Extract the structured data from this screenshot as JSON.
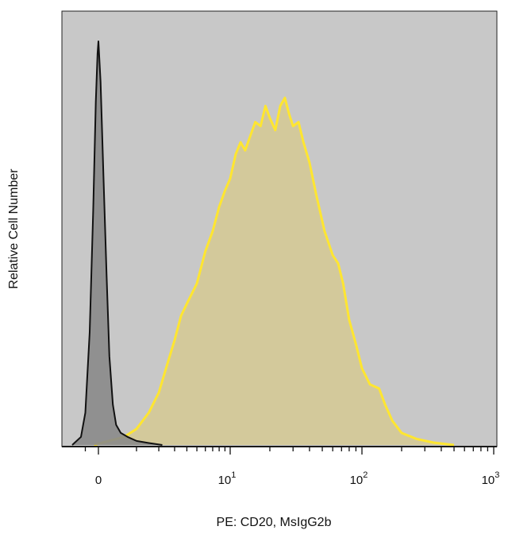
{
  "chart_data": {
    "type": "area",
    "title": "",
    "xlabel": "PE: CD20, MsIgG2b",
    "ylabel": "Relative Cell Number",
    "x_scale": "biexponential",
    "xlim": [
      -0.5,
      1200
    ],
    "ylim": [
      0,
      1.0
    ],
    "grid": false,
    "legend": "none",
    "plot_background": "#c8c8c8",
    "x_ticks": [
      {
        "value": 0,
        "base": "0",
        "exp": ""
      },
      {
        "value": 10,
        "base": "10",
        "exp": "1"
      },
      {
        "value": 100,
        "base": "10",
        "exp": "2"
      },
      {
        "value": 1000,
        "base": "10",
        "exp": "3"
      }
    ],
    "series": [
      {
        "name": "MsIgG2b",
        "stroke": "#111111",
        "fill": "#8a8a8a",
        "points": [
          [
            -0.6,
            0.0
          ],
          [
            -0.4,
            0.02
          ],
          [
            -0.3,
            0.08
          ],
          [
            -0.2,
            0.28
          ],
          [
            -0.12,
            0.58
          ],
          [
            -0.06,
            0.85
          ],
          [
            -0.02,
            0.97
          ],
          [
            0.0,
            1.0
          ],
          [
            0.04,
            0.9
          ],
          [
            0.1,
            0.65
          ],
          [
            0.16,
            0.42
          ],
          [
            0.22,
            0.22
          ],
          [
            0.3,
            0.1
          ],
          [
            0.38,
            0.05
          ],
          [
            0.5,
            0.03
          ],
          [
            0.7,
            0.02
          ],
          [
            1.0,
            0.01
          ],
          [
            1.5,
            0.005
          ],
          [
            2.2,
            0.0
          ]
        ]
      },
      {
        "name": "CD20",
        "stroke": "#ffe630",
        "fill": "#d7c98c",
        "points": [
          [
            -0.1,
            0.0
          ],
          [
            0.2,
            0.01
          ],
          [
            0.6,
            0.02
          ],
          [
            1.0,
            0.04
          ],
          [
            1.5,
            0.08
          ],
          [
            2.0,
            0.13
          ],
          [
            2.5,
            0.2
          ],
          [
            3.0,
            0.26
          ],
          [
            3.5,
            0.32
          ],
          [
            4.0,
            0.35
          ],
          [
            5.0,
            0.4
          ],
          [
            6.0,
            0.48
          ],
          [
            7.0,
            0.53
          ],
          [
            8.0,
            0.59
          ],
          [
            9.0,
            0.63
          ],
          [
            10.0,
            0.66
          ],
          [
            11.0,
            0.72
          ],
          [
            12.0,
            0.75
          ],
          [
            13.0,
            0.73
          ],
          [
            14.0,
            0.76
          ],
          [
            15.5,
            0.8
          ],
          [
            17.0,
            0.79
          ],
          [
            18.5,
            0.84
          ],
          [
            20.0,
            0.81
          ],
          [
            22.0,
            0.78
          ],
          [
            24.0,
            0.84
          ],
          [
            26.0,
            0.86
          ],
          [
            28.0,
            0.82
          ],
          [
            30.0,
            0.79
          ],
          [
            33.0,
            0.8
          ],
          [
            36.0,
            0.75
          ],
          [
            40.0,
            0.7
          ],
          [
            45.0,
            0.62
          ],
          [
            52.0,
            0.53
          ],
          [
            60.0,
            0.47
          ],
          [
            66.0,
            0.45
          ],
          [
            72.0,
            0.4
          ],
          [
            80.0,
            0.31
          ],
          [
            90.0,
            0.25
          ],
          [
            100.0,
            0.19
          ],
          [
            115.0,
            0.15
          ],
          [
            135.0,
            0.14
          ],
          [
            150.0,
            0.1
          ],
          [
            170.0,
            0.06
          ],
          [
            200.0,
            0.03
          ],
          [
            260.0,
            0.015
          ],
          [
            350.0,
            0.006
          ],
          [
            500.0,
            0.0
          ]
        ]
      }
    ]
  }
}
